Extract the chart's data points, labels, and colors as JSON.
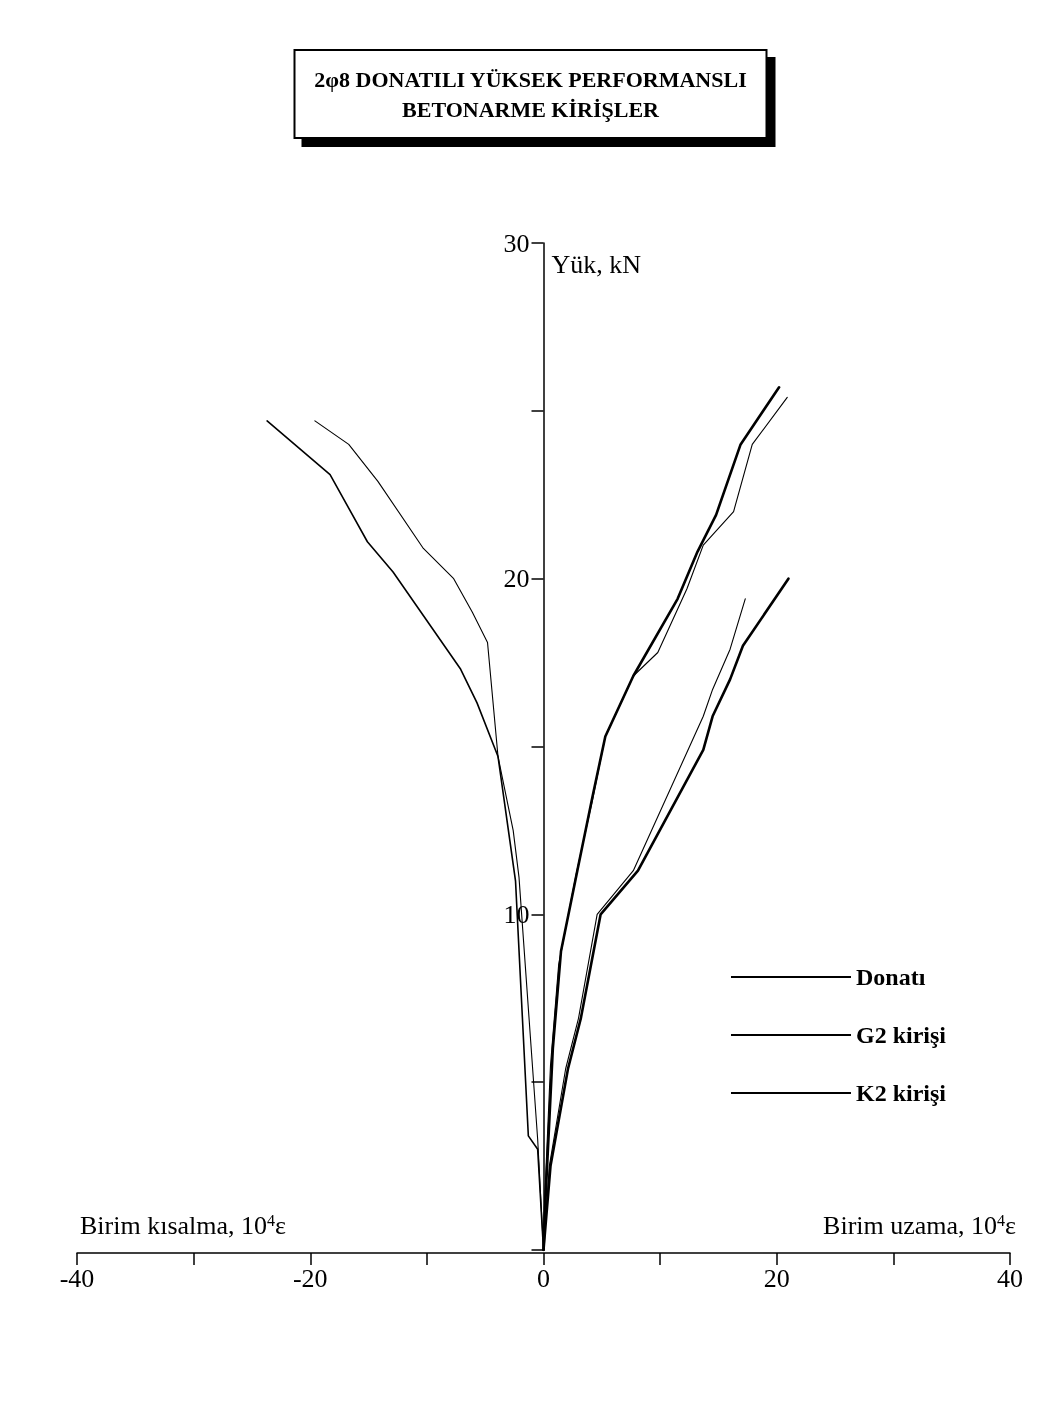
{
  "chart_data": {
    "type": "line",
    "title": "2φ8 DONATILI YÜKSEK PERFORMANSLI\nBETONARME KİRİŞLER",
    "xlabel": "Birim uzama, 10$^{4}$ε",
    "ylabel": "Yük, kN",
    "annotations": [
      "Birim kısalma, 10$^{4}$ε"
    ],
    "xlim": [
      -40,
      40
    ],
    "xticks": [
      -40,
      {
        "value": -30,
        "label": null
      },
      -20,
      {
        "value": -10,
        "label": null
      },
      0,
      {
        "value": 10,
        "label": null
      },
      20,
      {
        "value": 30,
        "label": null
      },
      40
    ],
    "ylim": [
      0,
      30
    ],
    "yticks": [
      {
        "value": 0,
        "label": null
      },
      {
        "value": 5,
        "label": null
      },
      10,
      {
        "value": 15,
        "label": null
      },
      20,
      {
        "value": 25,
        "label": null
      },
      30
    ],
    "grid": false,
    "legend": "bottom right",
    "marker": "none",
    "line_style": "solid",
    "series": [
      {
        "name": "Donatı",
        "color": "#000000",
        "x": [
          20.2,
          16.9,
          14.8,
          13.2,
          11.5,
          7.7,
          5.3,
          4.2,
          2.9,
          1.5,
          0.8,
          0.1,
          0
        ],
        "values": [
          25.7,
          24.0,
          21.9,
          20.8,
          19.4,
          17.1,
          15.3,
          13.5,
          11.3,
          8.9,
          6.0,
          1.0,
          0
        ]
      },
      {
        "name": "G2 kirişi",
        "color": "#000000",
        "x": [
          -23.7,
          -18.3,
          -15.1,
          -12.9,
          -7.1,
          -5.7,
          -3.9,
          -2.4,
          -1.3,
          -0.5,
          0
        ],
        "values": [
          24.7,
          23.1,
          21.1,
          20.2,
          17.3,
          16.3,
          14.7,
          11.0,
          3.4,
          3.0,
          0
        ]
      },
      {
        "name": "K2 kirişi",
        "color": "#000000",
        "x": [
          -19.6,
          -16.7,
          -14.2,
          -10.3,
          -7.7,
          -6.1,
          -4.8,
          -3.9,
          -2.6,
          -2.1,
          -0.5,
          0
        ],
        "values": [
          24.7,
          24.0,
          22.9,
          20.9,
          20.0,
          19.0,
          18.1,
          14.7,
          12.5,
          11.1,
          3.3,
          0
        ]
      },
      {
        "color": "#000000",
        "x": [
          21.0,
          17.1,
          16.0,
          14.5,
          13.7,
          8.1,
          4.9,
          3.2,
          2.1,
          0.6,
          0
        ],
        "values": [
          20.0,
          18.0,
          17.0,
          15.9,
          14.9,
          11.3,
          10.0,
          6.9,
          5.4,
          2.5,
          0
        ]
      },
      {
        "color": "#000000",
        "x": [
          20.9,
          17.9,
          16.3,
          13.7,
          12.3,
          9.8,
          7.7,
          5.3,
          4.2,
          2.8,
          1.3,
          0.6,
          0.1,
          0
        ],
        "values": [
          25.4,
          24.0,
          22.0,
          21.0,
          19.7,
          17.8,
          17.1,
          15.3,
          13.4,
          11.2,
          8.5,
          5.5,
          1.5,
          0
        ]
      },
      {
        "color": "#000000",
        "x": [
          17.3,
          16.0,
          14.5,
          13.7,
          7.7,
          4.6,
          3.0,
          1.9,
          0.5,
          0
        ],
        "values": [
          19.4,
          17.9,
          16.7,
          15.9,
          11.3,
          10.0,
          6.9,
          5.4,
          2.5,
          0
        ]
      }
    ]
  }
}
